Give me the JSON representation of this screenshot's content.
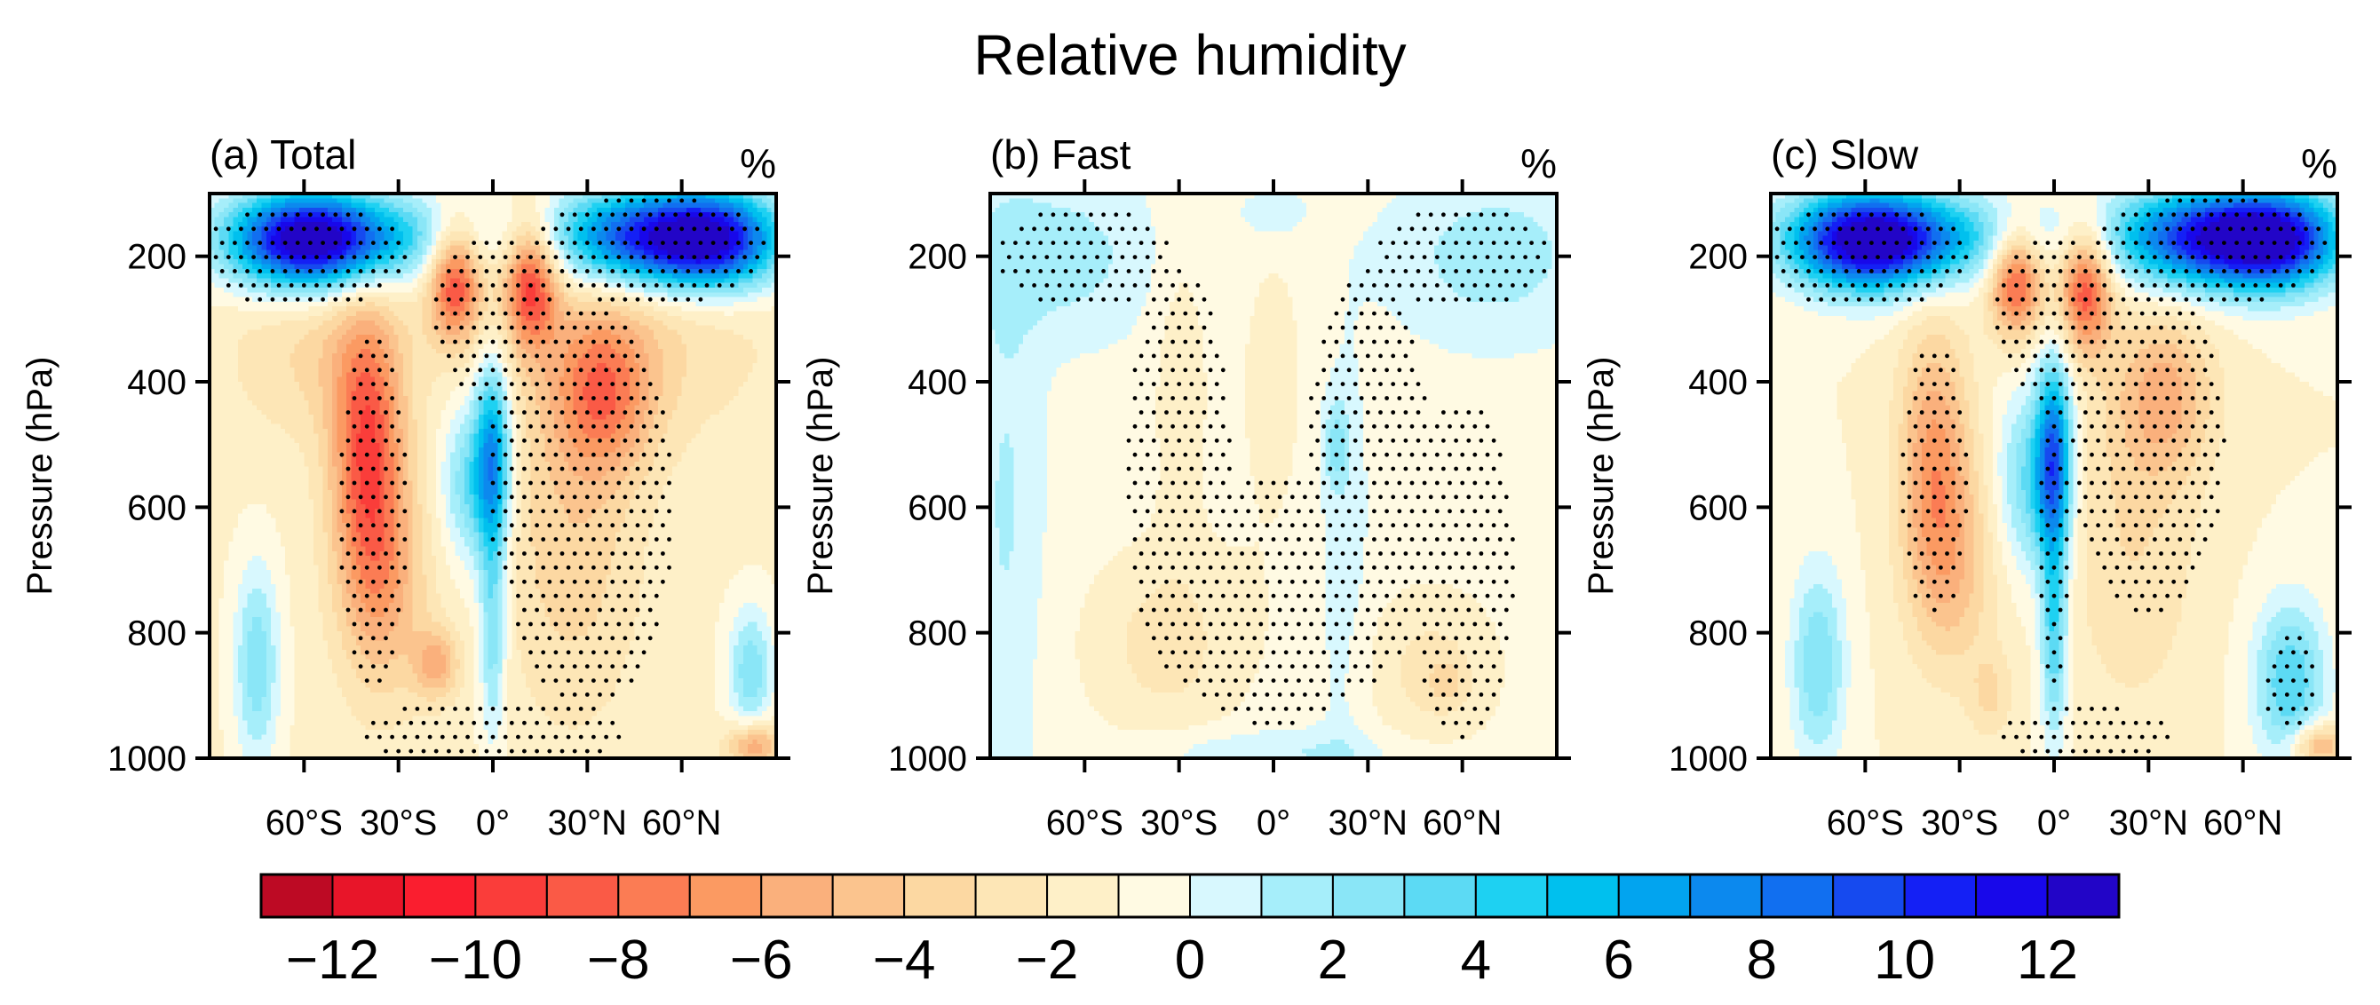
{
  "chart_data": {
    "type": "heatmap",
    "title": "Relative humidity",
    "ylabel": "Pressure (hPa)",
    "unit": "%",
    "ylim": [
      1000,
      100
    ],
    "xlim": [
      -90,
      90
    ],
    "yticks": [
      {
        "value": 200,
        "label": "200"
      },
      {
        "value": 400,
        "label": "400"
      },
      {
        "value": 600,
        "label": "600"
      },
      {
        "value": 800,
        "label": "800"
      },
      {
        "value": 1000,
        "label": "1000"
      }
    ],
    "xticks": [
      {
        "value": -60,
        "label": "60°S"
      },
      {
        "value": -30,
        "label": "30°S"
      },
      {
        "value": 0,
        "label": "0°"
      },
      {
        "value": 30,
        "label": "30°N"
      },
      {
        "value": 60,
        "label": "60°N"
      }
    ],
    "panels": [
      {
        "label": "(a) Total",
        "unit_label": "%",
        "blobs": [
          {
            "lat": -60,
            "p": 175,
            "sx": 17,
            "sy": 55,
            "a": 12
          },
          {
            "lat": -40,
            "p": 170,
            "sx": 25,
            "sy": 50,
            "a": 5
          },
          {
            "lat": 50,
            "p": 170,
            "sx": 22,
            "sy": 55,
            "a": 12
          },
          {
            "lat": 72,
            "p": 175,
            "sx": 14,
            "sy": 55,
            "a": 8
          },
          {
            "lat": -12,
            "p": 240,
            "sx": 6,
            "sy": 65,
            "a": -8
          },
          {
            "lat": 12,
            "p": 240,
            "sx": 6,
            "sy": 70,
            "a": -8
          },
          {
            "lat": -40,
            "p": 500,
            "sx": 8,
            "sy": 150,
            "a": -7
          },
          {
            "lat": -35,
            "p": 720,
            "sx": 10,
            "sy": 130,
            "a": -4
          },
          {
            "lat": -18,
            "p": 850,
            "sx": 5,
            "sy": 40,
            "a": -4
          },
          {
            "lat": 35,
            "p": 420,
            "sx": 11,
            "sy": 90,
            "a": -5
          },
          {
            "lat": 25,
            "p": 650,
            "sx": 15,
            "sy": 200,
            "a": -2.5
          },
          {
            "lat": 0,
            "p": 520,
            "sx": 4,
            "sy": 110,
            "a": 8
          },
          {
            "lat": 0,
            "p": 800,
            "sx": 3,
            "sy": 120,
            "a": 4
          },
          {
            "lat": -8,
            "p": 560,
            "sx": 6,
            "sy": 90,
            "a": 4
          },
          {
            "lat": -75,
            "p": 850,
            "sx": 5,
            "sy": 110,
            "a": 4
          },
          {
            "lat": 82,
            "p": 860,
            "sx": 5,
            "sy": 70,
            "a": 4
          },
          {
            "lat": 45,
            "p": 320,
            "sx": 30,
            "sy": 120,
            "a": -2
          },
          {
            "lat": -55,
            "p": 350,
            "sx": 20,
            "sy": 100,
            "a": -2
          },
          {
            "lat": 83,
            "p": 980,
            "sx": 6,
            "sy": 25,
            "a": -5
          }
        ],
        "base": -1.2,
        "stipple": [
          {
            "lat": -60,
            "p": 200,
            "sx": 30,
            "sy": 80
          },
          {
            "lat": 50,
            "p": 190,
            "sx": 35,
            "sy": 80
          },
          {
            "lat": 0,
            "p": 300,
            "sx": 18,
            "sy": 120
          },
          {
            "lat": -38,
            "p": 600,
            "sx": 10,
            "sy": 260
          },
          {
            "lat": 30,
            "p": 600,
            "sx": 25,
            "sy": 300
          },
          {
            "lat": 0,
            "p": 960,
            "sx": 40,
            "sy": 50
          },
          {
            "lat": 5,
            "p": 550,
            "sx": 6,
            "sy": 150
          }
        ]
      },
      {
        "label": "(b) Fast",
        "unit_label": "%",
        "blobs": [
          {
            "lat": -70,
            "p": 200,
            "sx": 22,
            "sy": 90,
            "a": 2
          },
          {
            "lat": 70,
            "p": 200,
            "sx": 22,
            "sy": 90,
            "a": 2
          },
          {
            "lat": -85,
            "p": 600,
            "sx": 8,
            "sy": 300,
            "a": 1.5
          },
          {
            "lat": 20,
            "p": 500,
            "sx": 3,
            "sy": 50,
            "a": 2.5
          },
          {
            "lat": 22,
            "p": 700,
            "sx": 6,
            "sy": 300,
            "a": 1
          },
          {
            "lat": 0,
            "p": 400,
            "sx": 12,
            "sy": 250,
            "a": -0.8
          },
          {
            "lat": -35,
            "p": 820,
            "sx": 18,
            "sy": 110,
            "a": -2
          },
          {
            "lat": -30,
            "p": 400,
            "sx": 6,
            "sy": 200,
            "a": -1.2
          },
          {
            "lat": 50,
            "p": 860,
            "sx": 15,
            "sy": 90,
            "a": -2
          },
          {
            "lat": 55,
            "p": 880,
            "sx": 4,
            "sy": 25,
            "a": -1.5
          },
          {
            "lat": 0,
            "p": 990,
            "sx": 30,
            "sy": 25,
            "a": 1.5
          },
          {
            "lat": 0,
            "p": 130,
            "sx": 8,
            "sy": 30,
            "a": 1.5
          }
        ],
        "base": -0.4,
        "stipple": [
          {
            "lat": -60,
            "p": 200,
            "sx": 25,
            "sy": 80
          },
          {
            "lat": 60,
            "p": 200,
            "sx": 25,
            "sy": 80
          },
          {
            "lat": -30,
            "p": 550,
            "sx": 15,
            "sy": 300
          },
          {
            "lat": 30,
            "p": 550,
            "sx": 18,
            "sy": 300
          },
          {
            "lat": 0,
            "p": 750,
            "sx": 35,
            "sy": 180
          },
          {
            "lat": 60,
            "p": 700,
            "sx": 15,
            "sy": 250
          }
        ]
      },
      {
        "label": "(c) Slow",
        "unit_label": "%",
        "blobs": [
          {
            "lat": -60,
            "p": 175,
            "sx": 17,
            "sy": 55,
            "a": 12
          },
          {
            "lat": -40,
            "p": 170,
            "sx": 25,
            "sy": 50,
            "a": 5
          },
          {
            "lat": 50,
            "p": 170,
            "sx": 22,
            "sy": 55,
            "a": 12
          },
          {
            "lat": 72,
            "p": 175,
            "sx": 14,
            "sy": 55,
            "a": 8
          },
          {
            "lat": -12,
            "p": 240,
            "sx": 6,
            "sy": 60,
            "a": -8
          },
          {
            "lat": 10,
            "p": 250,
            "sx": 6,
            "sy": 70,
            "a": -8
          },
          {
            "lat": -38,
            "p": 520,
            "sx": 8,
            "sy": 150,
            "a": -5
          },
          {
            "lat": -32,
            "p": 700,
            "sx": 10,
            "sy": 120,
            "a": -3
          },
          {
            "lat": 35,
            "p": 420,
            "sx": 11,
            "sy": 90,
            "a": -4
          },
          {
            "lat": 25,
            "p": 650,
            "sx": 15,
            "sy": 200,
            "a": -2
          },
          {
            "lat": 0,
            "p": 520,
            "sx": 4,
            "sy": 110,
            "a": 9
          },
          {
            "lat": 0,
            "p": 800,
            "sx": 3,
            "sy": 120,
            "a": 5
          },
          {
            "lat": -8,
            "p": 560,
            "sx": 7,
            "sy": 100,
            "a": 4
          },
          {
            "lat": -75,
            "p": 850,
            "sx": 6,
            "sy": 110,
            "a": 4
          },
          {
            "lat": 75,
            "p": 880,
            "sx": 8,
            "sy": 90,
            "a": 5
          },
          {
            "lat": 84,
            "p": 980,
            "sx": 6,
            "sy": 25,
            "a": -5
          },
          {
            "lat": -20,
            "p": 900,
            "sx": 5,
            "sy": 50,
            "a": -2
          }
        ],
        "base": -1,
        "stipple": [
          {
            "lat": -60,
            "p": 200,
            "sx": 30,
            "sy": 80
          },
          {
            "lat": 50,
            "p": 190,
            "sx": 35,
            "sy": 80
          },
          {
            "lat": 0,
            "p": 300,
            "sx": 18,
            "sy": 120
          },
          {
            "lat": -38,
            "p": 560,
            "sx": 10,
            "sy": 200
          },
          {
            "lat": 30,
            "p": 500,
            "sx": 22,
            "sy": 250
          },
          {
            "lat": 0,
            "p": 650,
            "sx": 4,
            "sy": 250
          },
          {
            "lat": 10,
            "p": 960,
            "sx": 25,
            "sy": 40
          },
          {
            "lat": 75,
            "p": 880,
            "sx": 8,
            "sy": 70
          }
        ]
      }
    ],
    "colorbar": {
      "levels": [
        -13,
        -12,
        -11,
        -10,
        -9,
        -8,
        -7,
        -6,
        -5,
        -4,
        -3,
        -2,
        -1,
        0,
        1,
        2,
        3,
        4,
        5,
        6,
        7,
        8,
        9,
        10,
        11,
        12,
        13
      ],
      "colors": [
        "#bd0a24",
        "#e81529",
        "#fa1e2f",
        "#fa3d3a",
        "#fa5a46",
        "#fb7c54",
        "#fb9a62",
        "#fab07c",
        "#fbc48e",
        "#fcd8a2",
        "#fde6b6",
        "#fef0c8",
        "#fffae3",
        "#d8f8fe",
        "#a6eefa",
        "#8ae6f7",
        "#5cdaf4",
        "#1ed1f2",
        "#00c0ee",
        "#02a4ef",
        "#0c89ee",
        "#116ff0",
        "#164aef",
        "#1420f5",
        "#1808ea",
        "#2205c7"
      ],
      "tick_labels": [
        {
          "value": -12,
          "label": "−12"
        },
        {
          "value": -10,
          "label": "−10"
        },
        {
          "value": -8,
          "label": "−8"
        },
        {
          "value": -6,
          "label": "−6"
        },
        {
          "value": -4,
          "label": "−4"
        },
        {
          "value": -2,
          "label": "−2"
        },
        {
          "value": 0,
          "label": "0"
        },
        {
          "value": 2,
          "label": "2"
        },
        {
          "value": 4,
          "label": "4"
        },
        {
          "value": 6,
          "label": "6"
        },
        {
          "value": 8,
          "label": "8"
        },
        {
          "value": 10,
          "label": "10"
        },
        {
          "value": 12,
          "label": "12"
        }
      ]
    }
  }
}
